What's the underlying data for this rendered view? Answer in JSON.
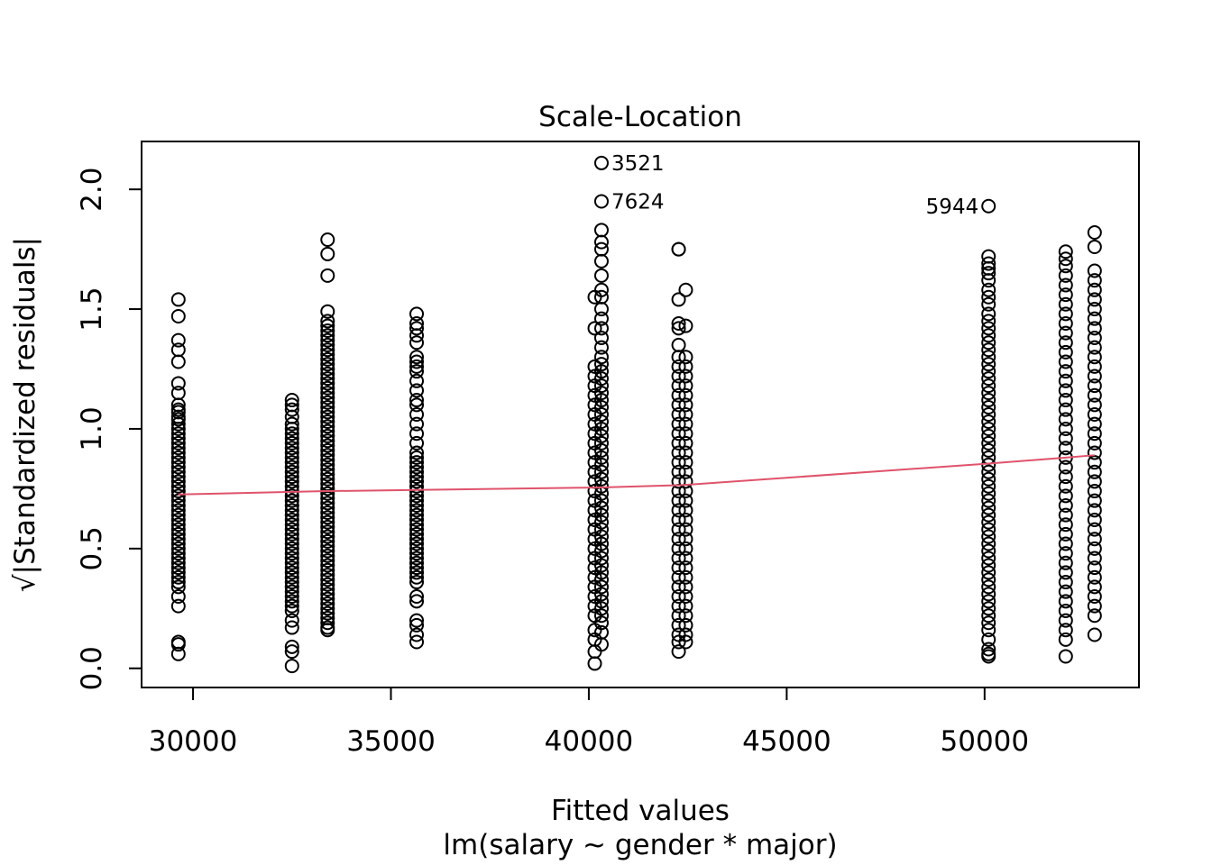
{
  "chart_data": {
    "type": "scatter",
    "title": "Scale-Location",
    "xlabel": "Fitted values",
    "xlabel_sub": "lm(salary ~ gender * major)",
    "ylabel": "√|Standardized residuals|",
    "xlim": [
      28700,
      53900
    ],
    "ylim": [
      -0.08,
      2.2
    ],
    "x_ticks": [
      30000,
      35000,
      40000,
      45000,
      50000
    ],
    "x_tick_labels": [
      "30000",
      "35000",
      "40000",
      "45000",
      "50000"
    ],
    "y_ticks": [
      0.0,
      0.5,
      1.0,
      1.5,
      2.0
    ],
    "y_tick_labels": [
      "0.0",
      "0.5",
      "1.0",
      "1.5",
      "2.0"
    ],
    "grid": false,
    "colors": {
      "points": "#000000",
      "smooth_line": "#DF536B"
    },
    "groups": [
      {
        "x": 29630,
        "values": [
          1.54,
          1.47,
          1.37,
          1.33,
          1.28,
          1.19,
          1.15,
          1.1,
          1.08,
          1.07,
          1.05,
          1.04,
          1.02,
          1.0,
          0.98,
          0.96,
          0.94,
          0.92,
          0.9,
          0.88,
          0.86,
          0.84,
          0.82,
          0.8,
          0.78,
          0.76,
          0.74,
          0.72,
          0.7,
          0.68,
          0.66,
          0.64,
          0.62,
          0.6,
          0.58,
          0.56,
          0.54,
          0.52,
          0.5,
          0.48,
          0.46,
          0.44,
          0.42,
          0.4,
          0.38,
          0.36,
          0.34,
          0.3,
          0.26,
          0.11,
          0.1,
          0.06
        ]
      },
      {
        "x": 32500,
        "values": [
          1.12,
          1.1,
          1.08,
          1.05,
          1.02,
          1.0,
          0.98,
          0.96,
          0.94,
          0.92,
          0.9,
          0.88,
          0.86,
          0.84,
          0.82,
          0.8,
          0.78,
          0.76,
          0.74,
          0.72,
          0.7,
          0.68,
          0.66,
          0.64,
          0.62,
          0.6,
          0.58,
          0.56,
          0.54,
          0.52,
          0.5,
          0.48,
          0.46,
          0.44,
          0.42,
          0.4,
          0.38,
          0.36,
          0.34,
          0.32,
          0.3,
          0.28,
          0.26,
          0.24,
          0.2,
          0.17,
          0.09,
          0.07,
          0.01
        ]
      },
      {
        "x": 33400,
        "values": [
          1.79,
          1.73,
          1.64,
          1.49,
          1.45,
          1.43,
          1.41,
          1.39,
          1.37,
          1.35,
          1.33,
          1.31,
          1.29,
          1.27,
          1.25,
          1.23,
          1.21,
          1.19,
          1.17,
          1.15,
          1.13,
          1.11,
          1.09,
          1.07,
          1.05,
          1.03,
          1.01,
          0.99,
          0.97,
          0.95,
          0.93,
          0.91,
          0.89,
          0.87,
          0.85,
          0.83,
          0.81,
          0.79,
          0.77,
          0.75,
          0.73,
          0.71,
          0.69,
          0.67,
          0.65,
          0.63,
          0.61,
          0.59,
          0.57,
          0.55,
          0.53,
          0.51,
          0.49,
          0.47,
          0.45,
          0.43,
          0.41,
          0.39,
          0.37,
          0.35,
          0.33,
          0.31,
          0.29,
          0.27,
          0.25,
          0.23,
          0.21,
          0.19,
          0.17,
          0.16
        ]
      },
      {
        "x": 35650,
        "values": [
          1.48,
          1.44,
          1.42,
          1.39,
          1.36,
          1.3,
          1.28,
          1.26,
          1.24,
          1.2,
          1.16,
          1.12,
          1.1,
          1.06,
          1.02,
          0.98,
          0.94,
          0.9,
          0.88,
          0.86,
          0.84,
          0.82,
          0.8,
          0.78,
          0.76,
          0.74,
          0.72,
          0.7,
          0.68,
          0.66,
          0.64,
          0.62,
          0.6,
          0.58,
          0.56,
          0.54,
          0.52,
          0.5,
          0.48,
          0.46,
          0.44,
          0.42,
          0.4,
          0.38,
          0.36,
          0.3,
          0.28,
          0.2,
          0.18,
          0.14,
          0.11
        ]
      },
      {
        "x": 40150,
        "values": [
          1.55,
          1.42,
          1.26,
          1.22,
          1.18,
          1.14,
          1.1,
          1.06,
          1.02,
          0.98,
          0.94,
          0.9,
          0.86,
          0.82,
          0.78,
          0.74,
          0.7,
          0.66,
          0.62,
          0.58,
          0.54,
          0.5,
          0.46,
          0.42,
          0.38,
          0.34,
          0.3,
          0.26,
          0.22,
          0.16,
          0.12,
          0.07,
          0.02
        ]
      },
      {
        "x": 40320,
        "values": [
          2.11,
          1.95,
          1.83,
          1.78,
          1.75,
          1.7,
          1.64,
          1.58,
          1.55,
          1.5,
          1.46,
          1.42,
          1.38,
          1.34,
          1.3,
          1.27,
          1.24,
          1.21,
          1.18,
          1.15,
          1.12,
          1.09,
          1.06,
          1.03,
          1.0,
          0.97,
          0.94,
          0.91,
          0.88,
          0.85,
          0.82,
          0.79,
          0.76,
          0.73,
          0.7,
          0.67,
          0.64,
          0.61,
          0.58,
          0.55,
          0.52,
          0.49,
          0.46,
          0.43,
          0.4,
          0.37,
          0.34,
          0.31,
          0.28,
          0.25,
          0.22,
          0.19,
          0.15,
          0.1
        ]
      },
      {
        "x": 42270,
        "values": [
          1.75,
          1.75,
          1.54,
          1.44,
          1.42,
          1.35,
          1.3,
          1.26,
          1.22,
          1.18,
          1.14,
          1.1,
          1.06,
          1.02,
          0.98,
          0.94,
          0.9,
          0.86,
          0.82,
          0.78,
          0.74,
          0.7,
          0.66,
          0.62,
          0.58,
          0.54,
          0.5,
          0.46,
          0.42,
          0.38,
          0.34,
          0.3,
          0.26,
          0.22,
          0.18,
          0.14,
          0.11,
          0.07
        ]
      },
      {
        "x": 42450,
        "values": [
          1.58,
          1.43,
          1.3,
          1.26,
          1.22,
          1.18,
          1.14,
          1.1,
          1.06,
          1.02,
          0.98,
          0.94,
          0.9,
          0.86,
          0.82,
          0.78,
          0.74,
          0.7,
          0.66,
          0.62,
          0.58,
          0.54,
          0.5,
          0.46,
          0.42,
          0.38,
          0.34,
          0.3,
          0.26,
          0.22,
          0.18,
          0.14,
          0.11
        ]
      },
      {
        "x": 50100,
        "values": [
          1.93,
          1.72,
          1.69,
          1.67,
          1.65,
          1.62,
          1.58,
          1.55,
          1.52,
          1.48,
          1.45,
          1.42,
          1.39,
          1.36,
          1.33,
          1.3,
          1.27,
          1.24,
          1.21,
          1.18,
          1.15,
          1.12,
          1.09,
          1.06,
          1.03,
          1.0,
          0.97,
          0.94,
          0.91,
          0.88,
          0.85,
          0.82,
          0.79,
          0.76,
          0.73,
          0.7,
          0.67,
          0.64,
          0.61,
          0.58,
          0.55,
          0.52,
          0.49,
          0.46,
          0.43,
          0.4,
          0.37,
          0.34,
          0.31,
          0.28,
          0.25,
          0.22,
          0.19,
          0.16,
          0.12,
          0.08,
          0.06,
          0.05
        ]
      },
      {
        "x": 52050,
        "values": [
          1.74,
          1.71,
          1.68,
          1.64,
          1.6,
          1.56,
          1.52,
          1.48,
          1.44,
          1.4,
          1.36,
          1.32,
          1.28,
          1.24,
          1.2,
          1.16,
          1.12,
          1.08,
          1.04,
          1.0,
          0.96,
          0.92,
          0.88,
          0.84,
          0.8,
          0.76,
          0.72,
          0.68,
          0.64,
          0.6,
          0.56,
          0.52,
          0.48,
          0.44,
          0.4,
          0.36,
          0.32,
          0.28,
          0.24,
          0.2,
          0.16,
          0.12,
          0.05
        ]
      },
      {
        "x": 52780,
        "values": [
          1.82,
          1.76,
          1.66,
          1.62,
          1.58,
          1.54,
          1.5,
          1.46,
          1.42,
          1.38,
          1.34,
          1.3,
          1.26,
          1.22,
          1.18,
          1.14,
          1.1,
          1.06,
          1.02,
          0.98,
          0.94,
          0.9,
          0.86,
          0.82,
          0.78,
          0.74,
          0.7,
          0.66,
          0.62,
          0.58,
          0.54,
          0.5,
          0.46,
          0.42,
          0.38,
          0.34,
          0.3,
          0.26,
          0.22,
          0.14
        ]
      }
    ],
    "smooth_line": {
      "x": [
        29630,
        32500,
        33400,
        35650,
        40200,
        42350,
        50100,
        52050,
        52780
      ],
      "y": [
        0.726,
        0.737,
        0.74,
        0.745,
        0.755,
        0.765,
        0.855,
        0.88,
        0.89
      ]
    },
    "labeled_points": [
      {
        "label": "3521",
        "x": 40320,
        "y": 2.11,
        "side": "right"
      },
      {
        "label": "7624",
        "x": 40320,
        "y": 1.95,
        "side": "right"
      },
      {
        "label": "5944",
        "x": 50100,
        "y": 1.93,
        "side": "left"
      }
    ]
  }
}
